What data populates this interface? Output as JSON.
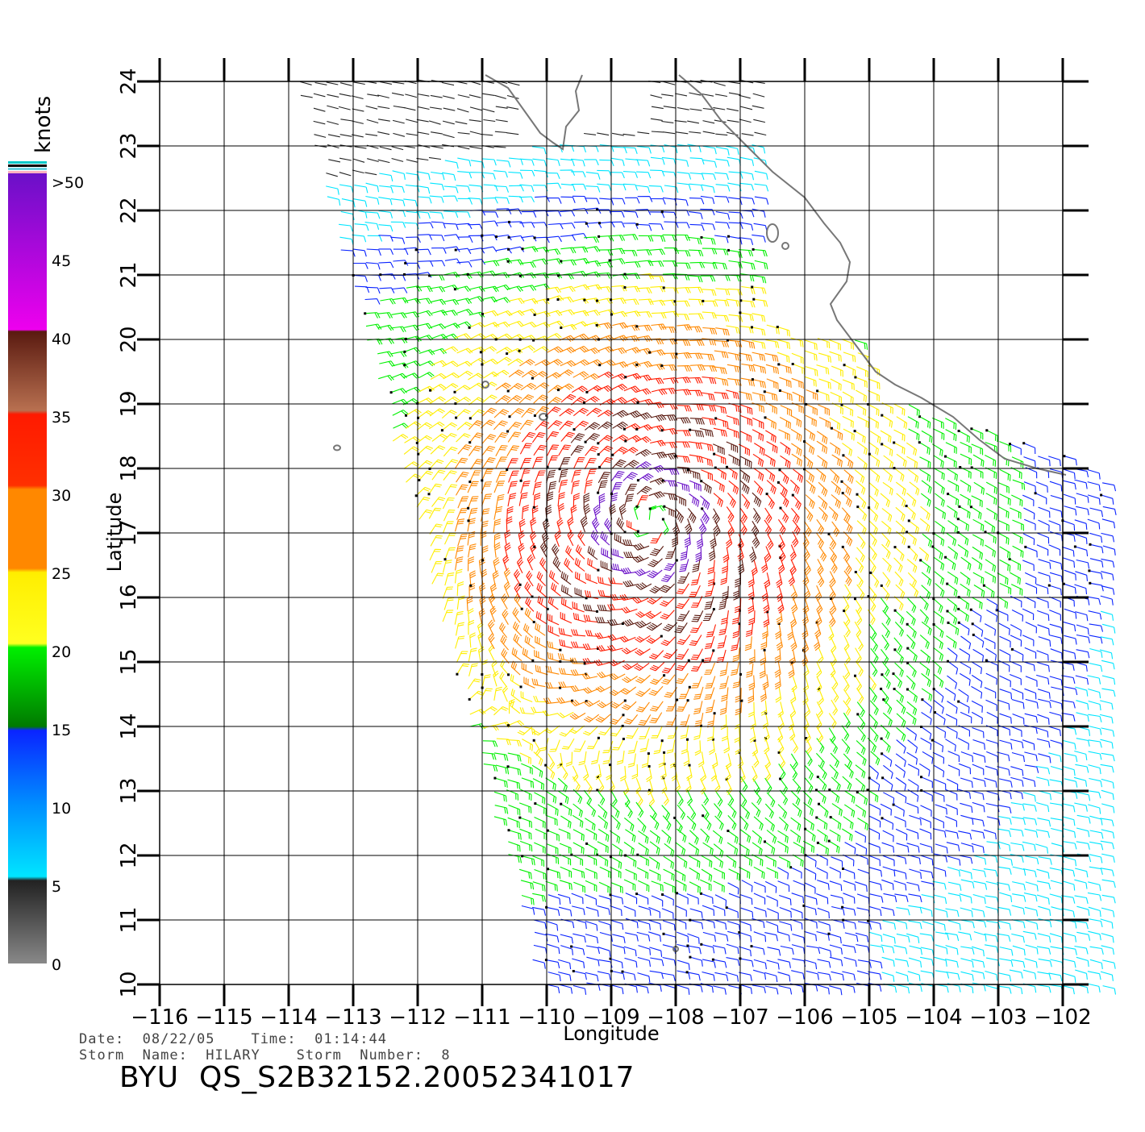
{
  "map": {
    "lat_range": [
      10,
      24
    ],
    "lon_range": [
      -116,
      -102
    ],
    "lat_ticks": [
      "10",
      "11",
      "12",
      "13",
      "14",
      "15",
      "16",
      "17",
      "18",
      "19",
      "20",
      "21",
      "22",
      "23",
      "24"
    ],
    "lon_ticks": [
      "−116",
      "−115",
      "−114",
      "−113",
      "−112",
      "−111",
      "−110",
      "−109",
      "−108",
      "−107",
      "−106",
      "−105",
      "−104",
      "−103",
      "−102"
    ],
    "lat_title": "Latitude",
    "lon_title": "Longitude",
    "storm_center": [
      -108.4,
      17.2
    ]
  },
  "legend": {
    "title": "knots",
    "labels": [
      ">50",
      "45",
      "40",
      "35",
      "30",
      "25",
      "20",
      "15",
      "10",
      "5",
      "0"
    ],
    "colors": {
      "gray": "#888888",
      "black": "#222222",
      "cyan": "#00e5ff",
      "blue": "#0a24ff",
      "dark_green": "#007a00",
      "green": "#00f000",
      "yellow": "#ffee00",
      "orange": "#ff8800",
      "red": "#ff1a00",
      "brown": "#5a1a10",
      "magenta": "#ee00ee",
      "purple": "#6a10c8"
    }
  },
  "header": {
    "date_line": "Date:  08/22/05    Time:  01:14:44",
    "storm_line": "Storm  Name:  HILARY    Storm  Number:  8"
  },
  "file_title": "BYU  QS_S2B32152.20052341017"
}
